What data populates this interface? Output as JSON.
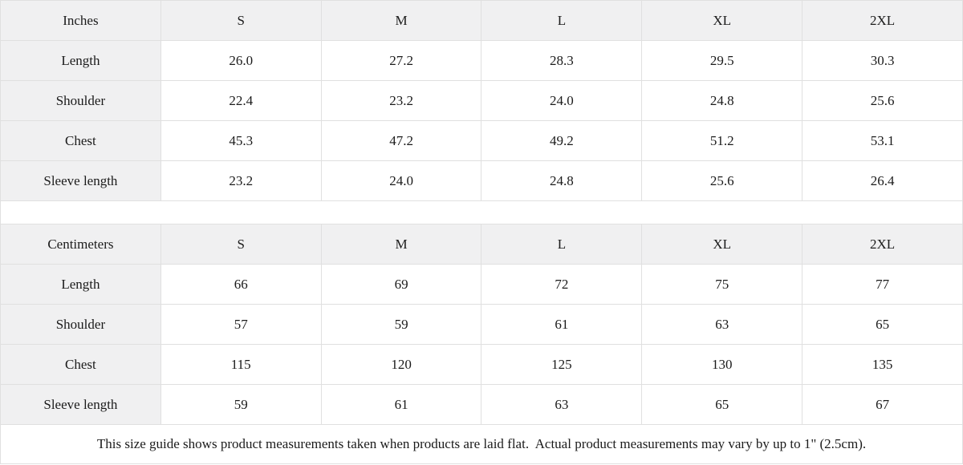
{
  "colors": {
    "header_bg": "#f0f0f1",
    "border": "#e0e0e0",
    "text": "#1b1b1b",
    "background": "#ffffff"
  },
  "chart_data": [
    {
      "type": "table",
      "title": "Inches",
      "columns": [
        "Inches",
        "S",
        "M",
        "L",
        "XL",
        "2XL"
      ],
      "rows": [
        [
          "Length",
          "26.0",
          "27.2",
          "28.3",
          "29.5",
          "30.3"
        ],
        [
          "Shoulder",
          "22.4",
          "23.2",
          "24.0",
          "24.8",
          "25.6"
        ],
        [
          "Chest",
          "45.3",
          "47.2",
          "49.2",
          "51.2",
          "53.1"
        ],
        [
          "Sleeve length",
          "23.2",
          "24.0",
          "24.8",
          "25.6",
          "26.4"
        ]
      ]
    },
    {
      "type": "table",
      "title": "Centimeters",
      "columns": [
        "Centimeters",
        "S",
        "M",
        "L",
        "XL",
        "2XL"
      ],
      "rows": [
        [
          "Length",
          "66",
          "69",
          "72",
          "75",
          "77"
        ],
        [
          "Shoulder",
          "57",
          "59",
          "61",
          "63",
          "65"
        ],
        [
          "Chest",
          "115",
          "120",
          "125",
          "130",
          "135"
        ],
        [
          "Sleeve length",
          "59",
          "61",
          "63",
          "65",
          "67"
        ]
      ]
    }
  ],
  "footnote": "This size guide shows product measurements taken when products are laid flat.  Actual product measurements may vary by up to 1\" (2.5cm)."
}
